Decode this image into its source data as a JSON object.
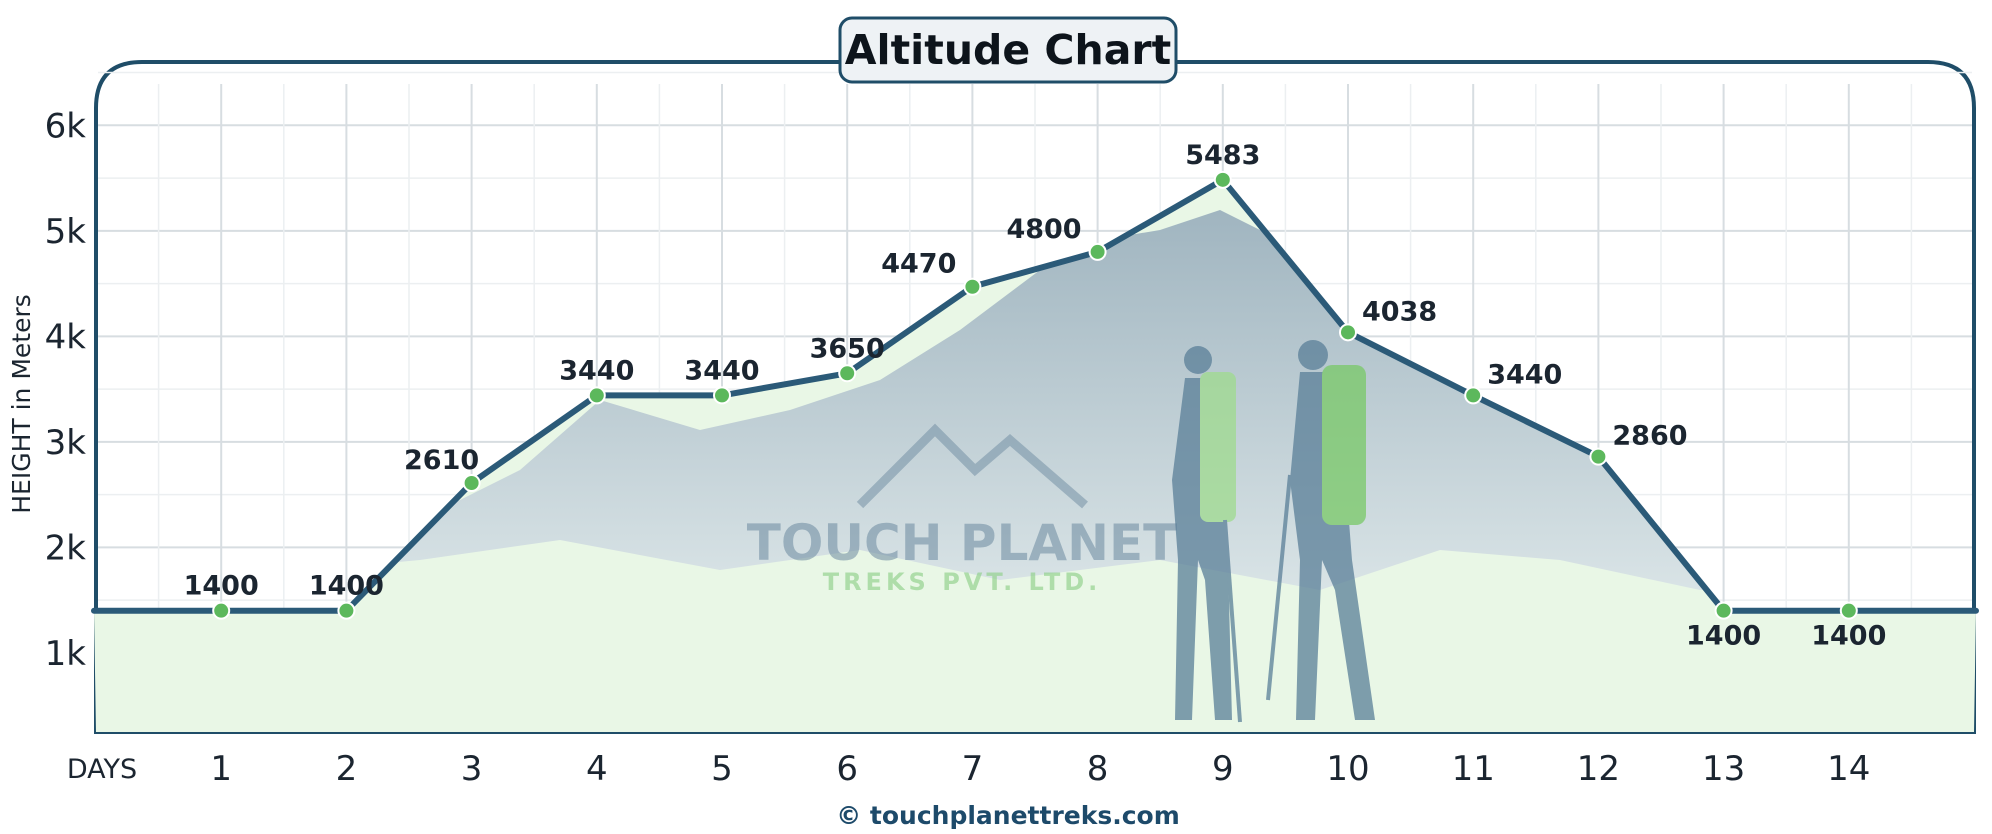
{
  "chart_data": {
    "type": "line",
    "title": "Altitude Chart",
    "ylabel": "HEIGHT in Meters",
    "xlabel": "DAYS",
    "x": [
      1,
      2,
      3,
      4,
      5,
      6,
      7,
      8,
      9,
      10,
      11,
      12,
      13,
      14
    ],
    "values": [
      1400,
      1400,
      2610,
      3440,
      3440,
      3650,
      4470,
      4800,
      5483,
      4038,
      3440,
      2860,
      1400,
      1400
    ],
    "data_labels": [
      "1400",
      "1400",
      "2610",
      "3440",
      "3440",
      "3650",
      "4470",
      "4800",
      "5483",
      "4038",
      "3440",
      "2860",
      "1400",
      "1400"
    ],
    "y_ticks": [
      1000,
      2000,
      3000,
      4000,
      5000,
      6000
    ],
    "y_tick_labels": [
      "1k",
      "2k",
      "3k",
      "4k",
      "5k",
      "6k"
    ],
    "x_tick_labels": [
      "1",
      "2",
      "3",
      "4",
      "5",
      "6",
      "7",
      "8",
      "9",
      "10",
      "11",
      "12",
      "13",
      "14"
    ],
    "ylim": [
      250,
      6600
    ],
    "xlim": [
      0,
      15
    ],
    "grid": true,
    "colors": {
      "line": "#2b5a78",
      "marker": "#5cb85c",
      "fill": "#e9f7e6",
      "frame": "#1f4d68"
    }
  },
  "watermark": {
    "brand": "TOUCH PLANET",
    "sub": "TREKS PVT. LTD."
  },
  "credit": "© touchplanettreks.com"
}
